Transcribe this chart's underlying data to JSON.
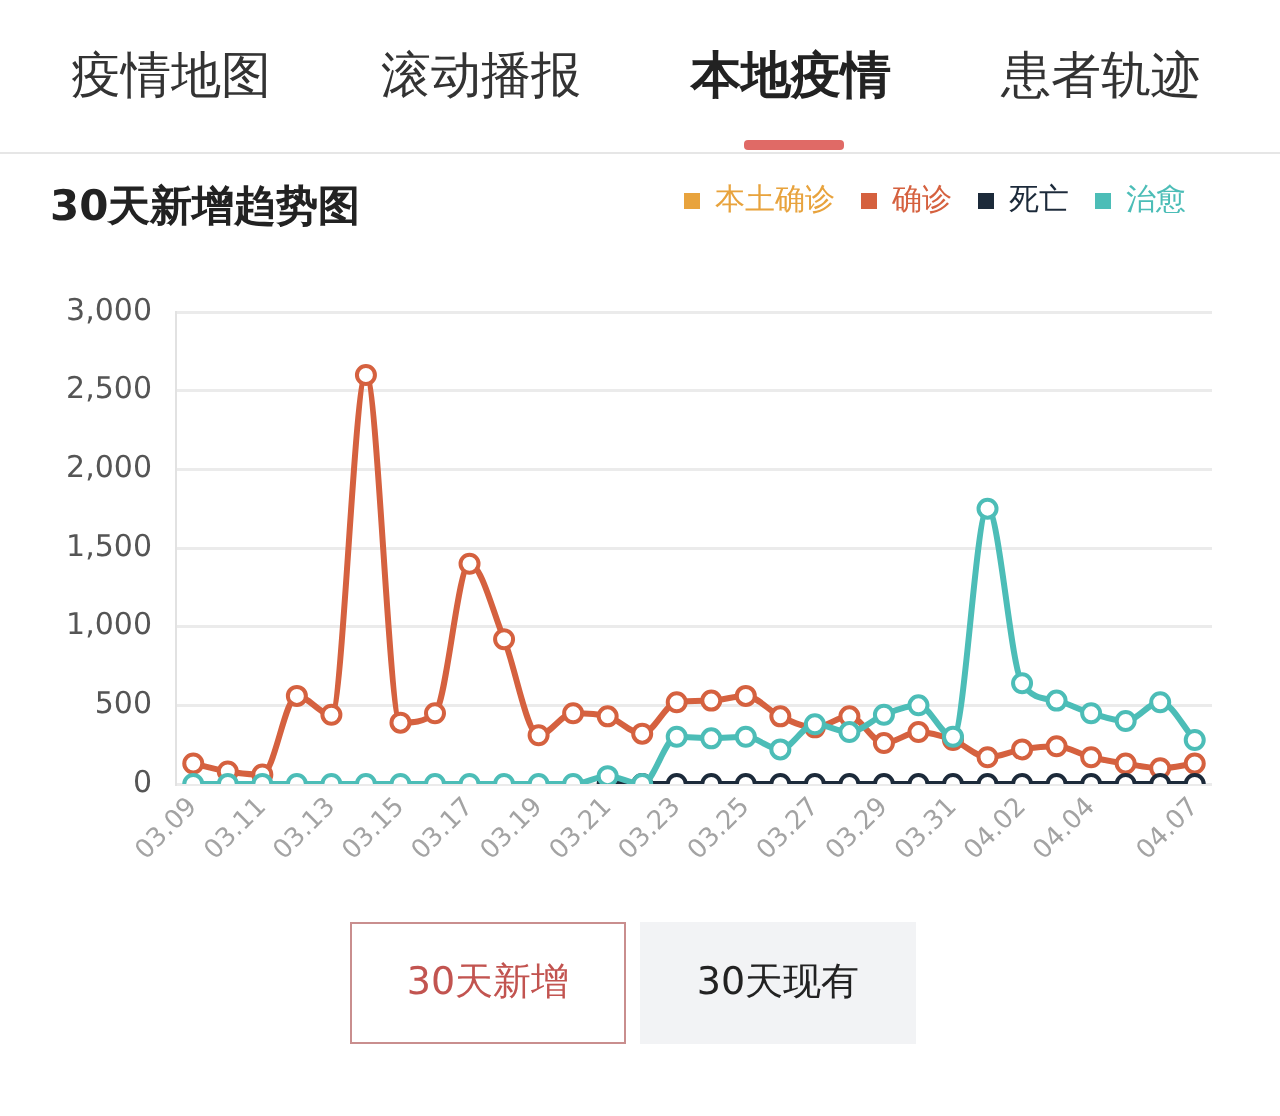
{
  "chart_data": {
    "type": "line",
    "title": "30天新增趋势图",
    "categories": [
      "03.09",
      null,
      "03.11",
      null,
      "03.13",
      null,
      "03.15",
      null,
      "03.17",
      null,
      "03.19",
      null,
      "03.21",
      null,
      "03.23",
      null,
      "03.25",
      null,
      "03.27",
      null,
      "03.29",
      null,
      "03.31",
      null,
      "04.02",
      null,
      "04.04",
      null,
      null,
      "04.07"
    ],
    "series": [
      {
        "name": "本土确诊",
        "color": "#e8a33d",
        "values": [
          null,
          null,
          null,
          null,
          null,
          null,
          null,
          null,
          null,
          null,
          null,
          null,
          null,
          null,
          null,
          null,
          null,
          null,
          null,
          null,
          null,
          null,
          null,
          null,
          null,
          null,
          null,
          null,
          null,
          null
        ]
      },
      {
        "name": "确诊",
        "color": "#d5613f",
        "values": [
          130,
          80,
          60,
          560,
          440,
          2600,
          390,
          450,
          1400,
          920,
          310,
          450,
          430,
          320,
          520,
          530,
          560,
          430,
          360,
          430,
          260,
          330,
          280,
          170,
          220,
          240,
          170,
          130,
          100,
          130
        ]
      },
      {
        "name": "死亡",
        "color": "#1c2a3a",
        "values": [
          null,
          null,
          null,
          null,
          null,
          null,
          null,
          null,
          null,
          null,
          null,
          null,
          0,
          0,
          0,
          0,
          0,
          0,
          0,
          0,
          0,
          0,
          0,
          0,
          0,
          0,
          0,
          0,
          0,
          0
        ]
      },
      {
        "name": "治愈",
        "color": "#4cbdb7",
        "values": [
          0,
          0,
          0,
          0,
          0,
          0,
          0,
          0,
          0,
          0,
          0,
          0,
          50,
          0,
          300,
          290,
          300,
          220,
          380,
          330,
          440,
          500,
          300,
          1750,
          640,
          530,
          450,
          400,
          520,
          280
        ]
      }
    ],
    "ylim": [
      0,
      3000
    ],
    "yticks": [
      0,
      500,
      {
        "value": 1000,
        "label": "1,000"
      },
      {
        "value": 1500,
        "label": "1,500"
      },
      {
        "value": 2000,
        "label": "2,000"
      },
      {
        "value": 2500,
        "label": "2,500"
      },
      {
        "value": 3000,
        "label": "3,000"
      }
    ],
    "grid": "y",
    "legend": "top right",
    "marker": "circle",
    "line_style": "solid",
    "annotations": [
      "疫情地图",
      "滚动播报",
      "本地疫情",
      "患者轨迹",
      "30天新增",
      "30天现有"
    ]
  }
}
